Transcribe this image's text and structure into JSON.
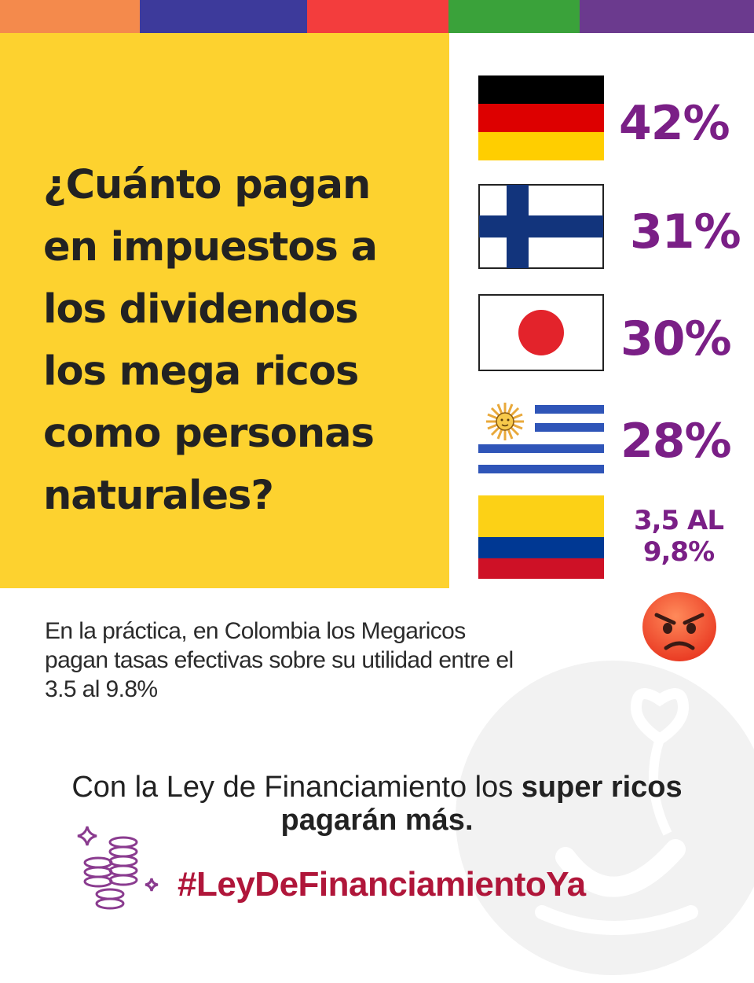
{
  "colors": {
    "top_bar": [
      "#f48a4c",
      "#3d3a9b",
      "#f33d3d",
      "#3aa23a",
      "#6b3a8e"
    ],
    "question_bg": "#fdd22f",
    "percent_text": "#7a1f86",
    "hashtag_text": "#b0163a"
  },
  "question": {
    "lines": [
      "¿Cuánto pagan",
      "en impuestos a",
      "los dividendos",
      "los mega ricos",
      "como personas",
      "naturales?"
    ]
  },
  "countries": [
    {
      "flag": "germany-flag-icon",
      "rate": "42%"
    },
    {
      "flag": "finland-flag-icon",
      "rate": "31%"
    },
    {
      "flag": "japan-flag-icon",
      "rate": "30%"
    },
    {
      "flag": "uruguay-flag-icon",
      "rate": "28%"
    },
    {
      "flag": "colombia-flag-icon",
      "rate_lines": [
        "3,5 AL",
        "9,8%"
      ]
    }
  ],
  "emoji": "angry-face-icon",
  "note": {
    "lines": [
      "En la práctica, en Colombia los Megaricos",
      "pagan tasas efectivas sobre su utilidad entre el",
      "3.5 al 9.8%"
    ]
  },
  "closing": {
    "normal": "Con la Ley de Financiamiento los ",
    "bold": "super ricos",
    "line2": "pagarán más."
  },
  "hashtag": "#LeyDeFinanciamientoYa",
  "decor_icons": [
    "coins-stack-icon",
    "sparkle-icon",
    "watermark-logo-icon"
  ]
}
